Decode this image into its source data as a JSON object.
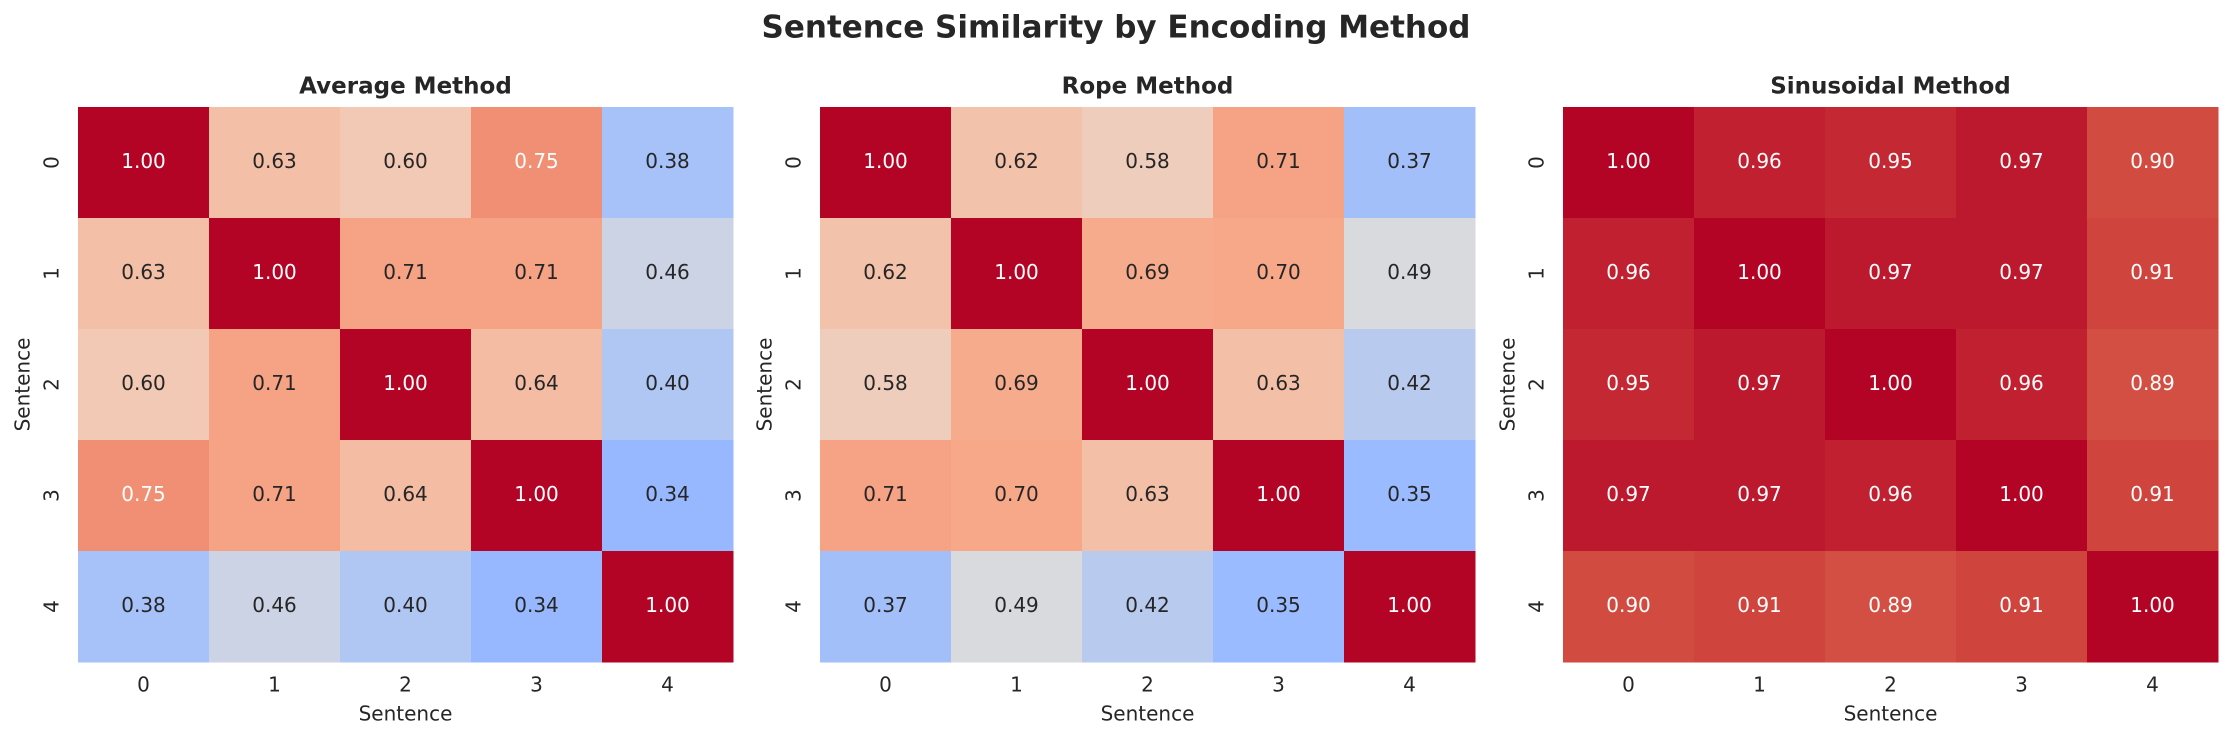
{
  "title": "Sentence Similarity by Encoding Method",
  "chart_data": [
    {
      "type": "heatmap",
      "title": "Average Method",
      "xlabel": "Sentence",
      "ylabel": "Sentence",
      "x": [
        "0",
        "1",
        "2",
        "3",
        "4"
      ],
      "y": [
        "0",
        "1",
        "2",
        "3",
        "4"
      ],
      "colormap": "coolwarm",
      "vlim": [
        0,
        1
      ],
      "values": [
        [
          1,
          0.63,
          0.6,
          0.75,
          0.38
        ],
        [
          0.63,
          1,
          0.71,
          0.71,
          0.46
        ],
        [
          0.6,
          0.71,
          1,
          0.64,
          0.4
        ],
        [
          0.75,
          0.71,
          0.64,
          1,
          0.34
        ],
        [
          0.38,
          0.46,
          0.4,
          0.34,
          1
        ]
      ],
      "value_labels": [
        [
          "1.00",
          "0.63",
          "0.60",
          "0.75",
          "0.38"
        ],
        [
          "0.63",
          "1.00",
          "0.71",
          "0.71",
          "0.46"
        ],
        [
          "0.60",
          "0.71",
          "1.00",
          "0.64",
          "0.40"
        ],
        [
          "0.75",
          "0.71",
          "0.64",
          "1.00",
          "0.34"
        ],
        [
          "0.38",
          "0.46",
          "0.40",
          "0.34",
          "1.00"
        ]
      ]
    },
    {
      "type": "heatmap",
      "title": "Rope Method",
      "xlabel": "Sentence",
      "ylabel": "Sentence",
      "x": [
        "0",
        "1",
        "2",
        "3",
        "4"
      ],
      "y": [
        "0",
        "1",
        "2",
        "3",
        "4"
      ],
      "colormap": "coolwarm",
      "vlim": [
        0,
        1
      ],
      "values": [
        [
          1,
          0.62,
          0.58,
          0.71,
          0.37
        ],
        [
          0.62,
          1,
          0.69,
          0.7,
          0.49
        ],
        [
          0.58,
          0.69,
          1,
          0.63,
          0.42
        ],
        [
          0.71,
          0.7,
          0.63,
          1,
          0.35
        ],
        [
          0.37,
          0.49,
          0.42,
          0.35,
          1
        ]
      ],
      "value_labels": [
        [
          "1.00",
          "0.62",
          "0.58",
          "0.71",
          "0.37"
        ],
        [
          "0.62",
          "1.00",
          "0.69",
          "0.70",
          "0.49"
        ],
        [
          "0.58",
          "0.69",
          "1.00",
          "0.63",
          "0.42"
        ],
        [
          "0.71",
          "0.70",
          "0.63",
          "1.00",
          "0.35"
        ],
        [
          "0.37",
          "0.49",
          "0.42",
          "0.35",
          "1.00"
        ]
      ]
    },
    {
      "type": "heatmap",
      "title": "Sinusoidal Method",
      "xlabel": "Sentence",
      "ylabel": "Sentence",
      "x": [
        "0",
        "1",
        "2",
        "3",
        "4"
      ],
      "y": [
        "0",
        "1",
        "2",
        "3",
        "4"
      ],
      "colormap": "coolwarm",
      "vlim": [
        0,
        1
      ],
      "values": [
        [
          1,
          0.96,
          0.95,
          0.97,
          0.9
        ],
        [
          0.96,
          1,
          0.97,
          0.97,
          0.91
        ],
        [
          0.95,
          0.97,
          1,
          0.96,
          0.89
        ],
        [
          0.97,
          0.97,
          0.96,
          1,
          0.91
        ],
        [
          0.9,
          0.91,
          0.89,
          0.91,
          1
        ]
      ],
      "value_labels": [
        [
          "1.00",
          "0.96",
          "0.95",
          "0.97",
          "0.90"
        ],
        [
          "0.96",
          "1.00",
          "0.97",
          "0.97",
          "0.91"
        ],
        [
          "0.95",
          "0.97",
          "1.00",
          "0.96",
          "0.89"
        ],
        [
          "0.97",
          "0.97",
          "0.96",
          "1.00",
          "0.91"
        ],
        [
          "0.90",
          "0.91",
          "0.89",
          "0.91",
          "1.00"
        ]
      ]
    }
  ]
}
